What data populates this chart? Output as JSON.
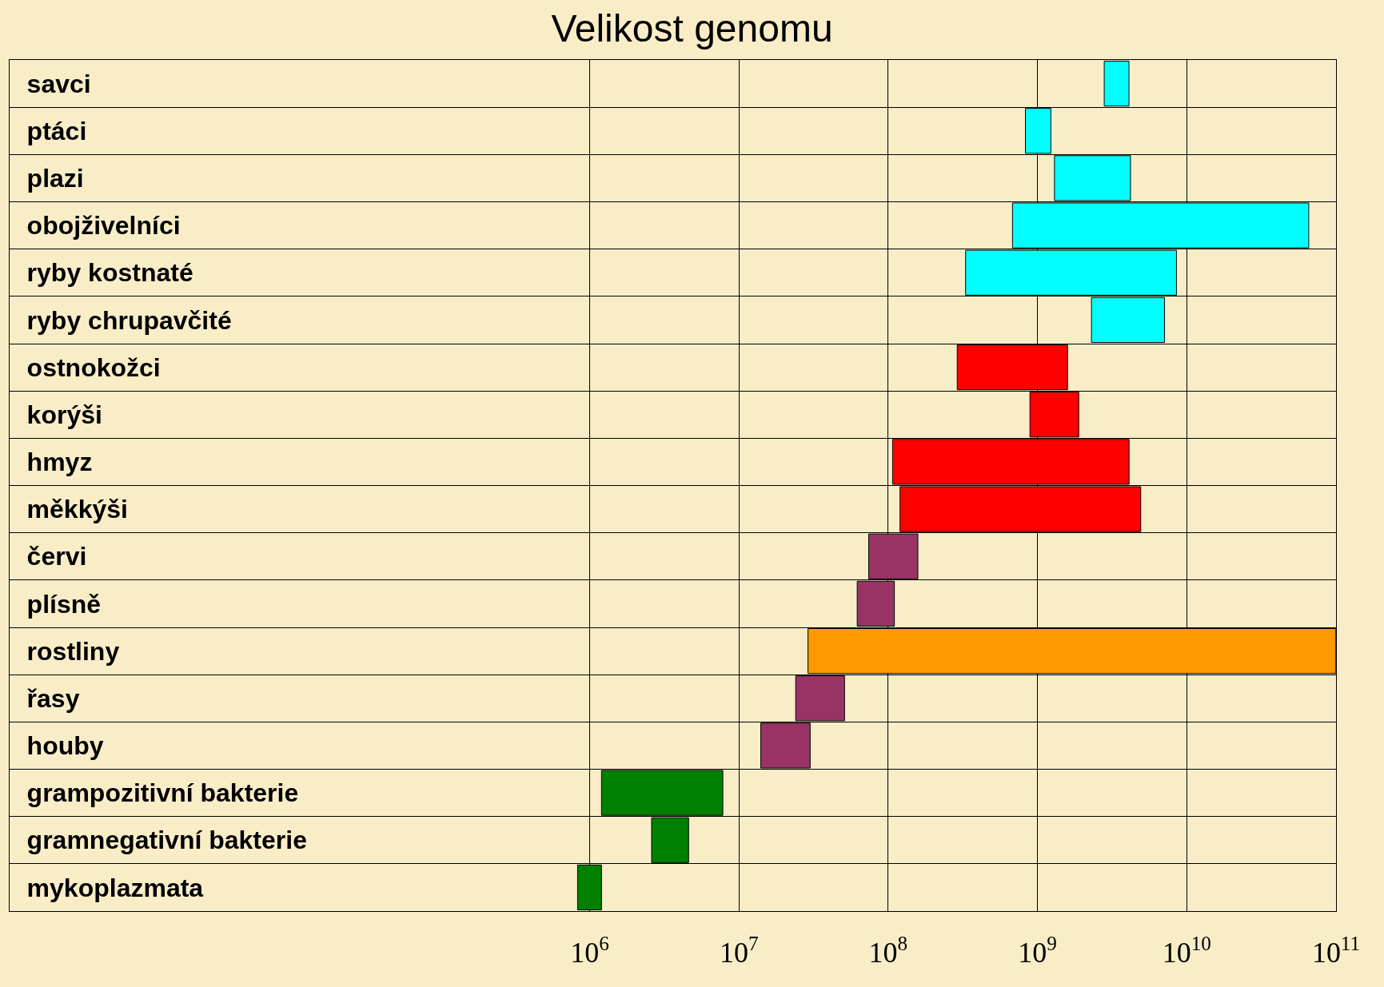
{
  "chart_data": {
    "type": "bar",
    "orientation": "horizontal",
    "title": "Velikost genomu",
    "categories": [
      "savci",
      "ptáci",
      "plazi",
      "obojživelníci",
      "ryby kostnaté",
      "ryby chrupavčité",
      "ostnokožci",
      "korýši",
      "hmyz",
      "měkkýši",
      "červi",
      "plísně",
      "rostliny",
      "řasy",
      "houby",
      "grampozitivní bakterie",
      "gramnegativní bakterie",
      "mykoplazmata"
    ],
    "base": [
      2800000000.0,
      830000000.0,
      1300000000.0,
      680000000.0,
      330000000.0,
      2300000000.0,
      290000000.0,
      890000000.0,
      107000000.0,
      120000000.0,
      74000000.0,
      62000000.0,
      29000000.0,
      24000000.0,
      14000000.0,
      1200000.0,
      2600000.0,
      830000.0
    ],
    "values": [
      1300000000.0,
      400000000.0,
      2900000000.0,
      65000000000.0,
      8200000000.0,
      4800000000.0,
      1300000000.0,
      1000000000.0,
      4000000000.0,
      4800000000.0,
      84000000.0,
      48000000.0,
      99700000000.0,
      27000000.0,
      16000000.0,
      6600000.0,
      2000000.0,
      370000.0
    ],
    "colors": [
      "#00ffff",
      "#00ffff",
      "#00ffff",
      "#00ffff",
      "#00ffff",
      "#00ffff",
      "#ff0000",
      "#ff0000",
      "#ff0000",
      "#ff0000",
      "#993366",
      "#993366",
      "#ff9900",
      "#993366",
      "#993366",
      "#008000",
      "#008000",
      "#008000"
    ],
    "log": "x",
    "xlim": [
      130,
      100000000000.0
    ],
    "xticks": [
      {
        "value": 1000000.0,
        "label": "10$^{6}$"
      },
      {
        "value": 10000000.0,
        "label": "10$^{7}$"
      },
      {
        "value": 100000000.0,
        "label": "10$^{8}$"
      },
      {
        "value": 1000000000.0,
        "label": "10$^{9}$"
      },
      {
        "value": 10000000000.0,
        "label": "10$^{10}$"
      },
      {
        "value": 100000000000.0,
        "label": "10$^{11}$"
      }
    ],
    "grid": true
  }
}
